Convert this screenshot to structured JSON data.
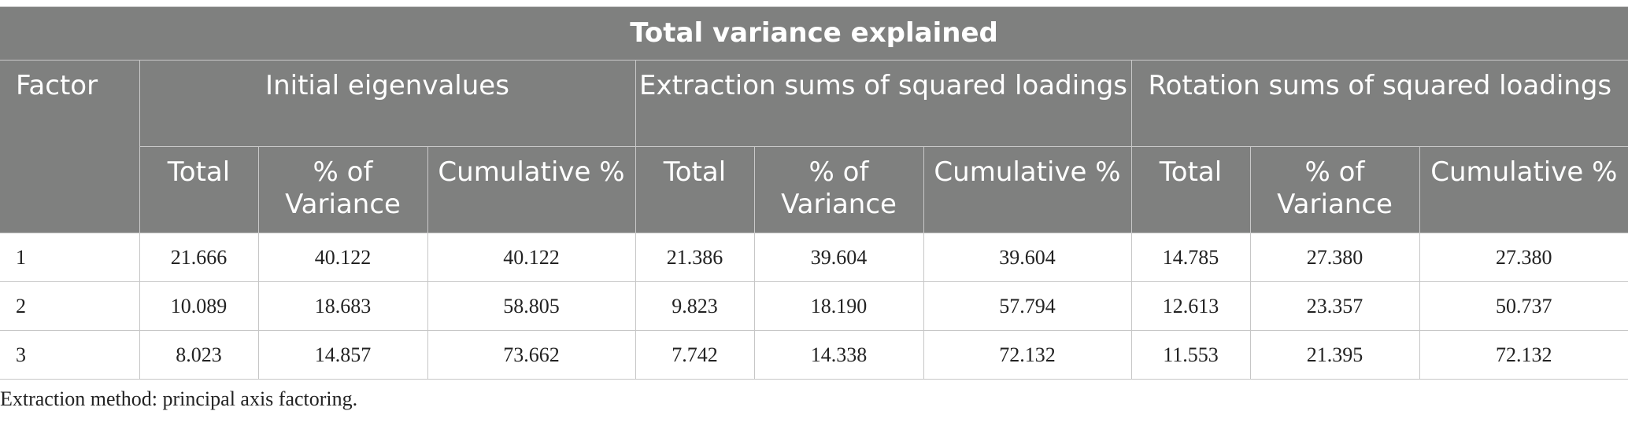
{
  "table": {
    "title": "Total variance explained",
    "factor_header": "Factor",
    "groups": [
      "Initial eigenvalues",
      "Extraction sums of squared loadings",
      "Rotation sums of squared loadings"
    ],
    "subheaders": [
      "Total",
      "% of Variance",
      "Cumulative %",
      "Total",
      "% of Variance",
      "Cumulative %",
      "Total",
      "% of Variance",
      "Cumulative %"
    ],
    "rows": [
      [
        "1",
        "21.666",
        "40.122",
        "40.122",
        "21.386",
        "39.604",
        "39.604",
        "14.785",
        "27.380",
        "27.380"
      ],
      [
        "2",
        "10.089",
        "18.683",
        "58.805",
        "9.823",
        "18.190",
        "57.794",
        "12.613",
        "23.357",
        "50.737"
      ],
      [
        "3",
        "8.023",
        "14.857",
        "73.662",
        "7.742",
        "14.338",
        "72.132",
        "11.553",
        "21.395",
        "72.132"
      ]
    ]
  },
  "footnote": "Extraction method: principal axis factoring."
}
